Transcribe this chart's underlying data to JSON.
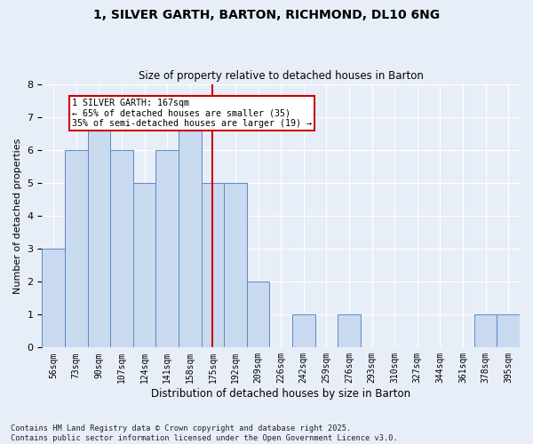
{
  "title_line1": "1, SILVER GARTH, BARTON, RICHMOND, DL10 6NG",
  "title_line2": "Size of property relative to detached houses in Barton",
  "xlabel": "Distribution of detached houses by size in Barton",
  "ylabel": "Number of detached properties",
  "categories": [
    "56sqm",
    "73sqm",
    "90sqm",
    "107sqm",
    "124sqm",
    "141sqm",
    "158sqm",
    "175sqm",
    "192sqm",
    "209sqm",
    "226sqm",
    "242sqm",
    "259sqm",
    "276sqm",
    "293sqm",
    "310sqm",
    "327sqm",
    "344sqm",
    "361sqm",
    "378sqm",
    "395sqm"
  ],
  "values": [
    3,
    6,
    7,
    6,
    5,
    6,
    7,
    5,
    5,
    2,
    0,
    1,
    0,
    1,
    0,
    0,
    0,
    0,
    0,
    1,
    1
  ],
  "bar_color": "#c9d9f0",
  "bar_edge_color": "#5a8ac6",
  "vline_color": "#cc0000",
  "annotation_text": "1 SILVER GARTH: 167sqm\n← 65% of detached houses are smaller (35)\n35% of semi-detached houses are larger (19) →",
  "annotation_box_color": "#cc0000",
  "ylim": [
    0,
    8
  ],
  "yticks": [
    0,
    1,
    2,
    3,
    4,
    5,
    6,
    7,
    8
  ],
  "footer": "Contains HM Land Registry data © Crown copyright and database right 2025.\nContains public sector information licensed under the Open Government Licence v3.0.",
  "bg_color": "#e8eef8",
  "plot_bg_color": "#e8eef8",
  "grid_color": "#ffffff"
}
